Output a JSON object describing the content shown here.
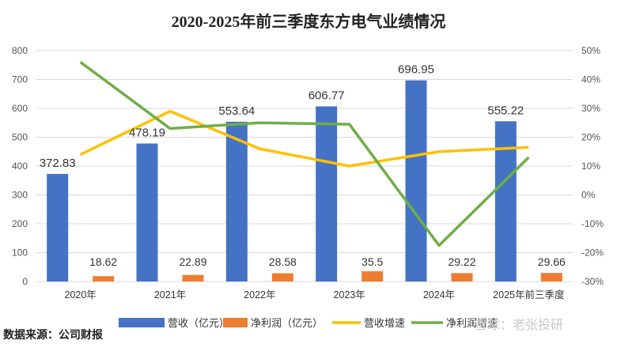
{
  "chart_data": {
    "type": "bar",
    "title": "2020-2025年前三季度东方电气业绩情况",
    "categories": [
      "2020年",
      "2021年",
      "2022年",
      "2023年",
      "2024年",
      "2025年前三季度"
    ],
    "series": [
      {
        "name": "营收（亿元）",
        "type": "bar",
        "axis": "left",
        "color": "#4472C4",
        "values": [
          372.83,
          478.19,
          553.64,
          606.77,
          696.95,
          555.22
        ]
      },
      {
        "name": "净利润（亿元）",
        "type": "bar",
        "axis": "left",
        "color": "#ED7D31",
        "values": [
          18.62,
          22.89,
          28.58,
          35.5,
          29.22,
          29.66
        ]
      },
      {
        "name": "营收增速",
        "type": "line",
        "axis": "right",
        "color": "#FFC000",
        "values": [
          14.0,
          29.0,
          16.0,
          10.0,
          15.0,
          16.5
        ]
      },
      {
        "name": "净利润增速",
        "type": "line",
        "axis": "right",
        "color": "#70AD47",
        "values": [
          46.0,
          23.0,
          25.0,
          24.5,
          -17.5,
          13.0
        ]
      }
    ],
    "bar_labels": [
      [
        "372.83",
        "478.19",
        "553.64",
        "606.77",
        "696.95",
        "555.22"
      ],
      [
        "18.62",
        "22.89",
        "28.58",
        "35.5",
        "29.22",
        "29.66"
      ]
    ],
    "y_left": {
      "min": 0,
      "max": 800,
      "step": 100,
      "ticks": [
        "0",
        "100",
        "200",
        "300",
        "400",
        "500",
        "600",
        "700",
        "800"
      ]
    },
    "y_right": {
      "min": -30,
      "max": 50,
      "step": 10,
      "ticks": [
        "-30%",
        "-20%",
        "-10%",
        "0%",
        "10%",
        "20%",
        "30%",
        "40%",
        "50%"
      ]
    },
    "grid": true,
    "legend_position": "bottom"
  },
  "source_text": "数据来源：公司财报",
  "watermark_text": "雪球：老张投研"
}
